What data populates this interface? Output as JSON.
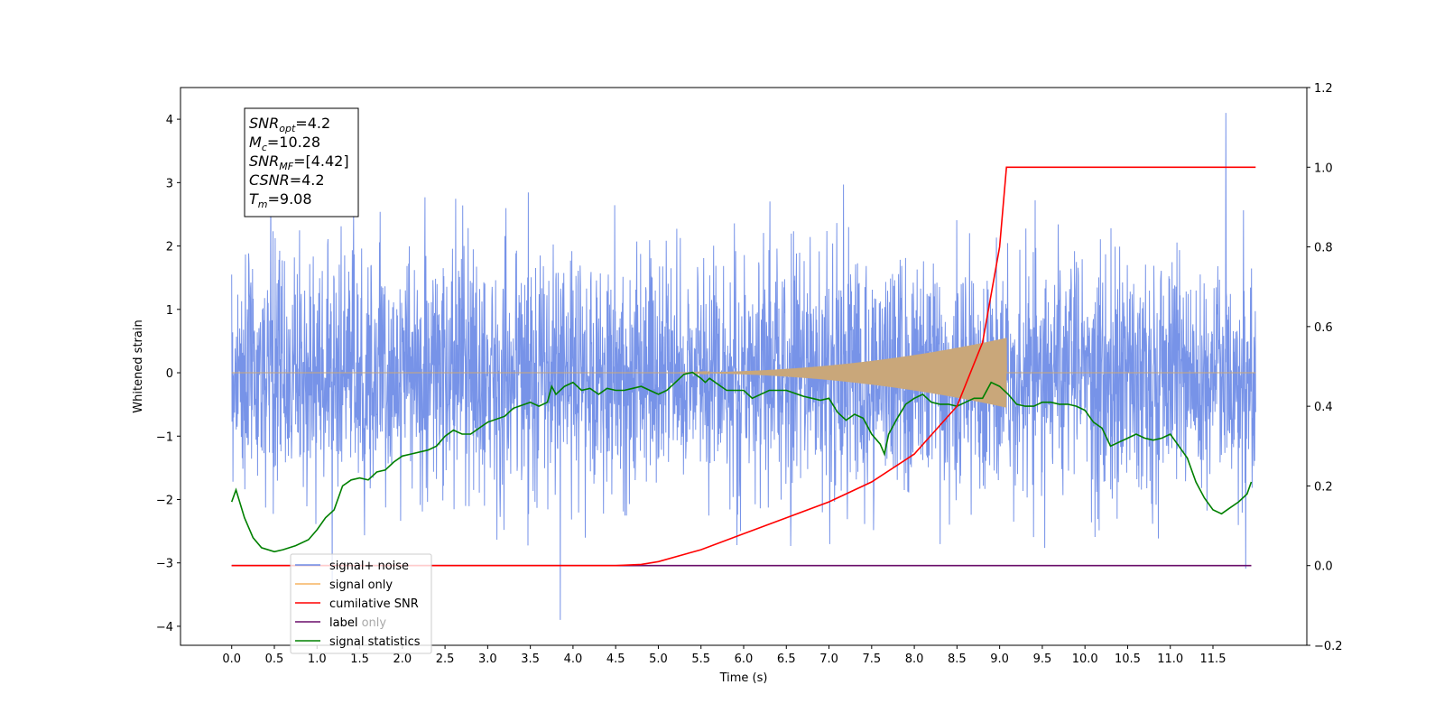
{
  "chart_data": {
    "type": "line",
    "xlabel": "Time (s)",
    "ylabel": "Whitened strain",
    "xlim": [
      -0.6,
      12.6
    ],
    "ylim": [
      -4.3,
      4.5
    ],
    "y2lim": [
      -0.2,
      1.2
    ],
    "x_ticks": [
      0.0,
      0.5,
      1.0,
      1.5,
      2.0,
      2.5,
      3.0,
      3.5,
      4.0,
      4.5,
      5.0,
      5.5,
      6.0,
      6.5,
      7.0,
      7.5,
      8.0,
      8.5,
      9.0,
      9.5,
      10.0,
      10.5,
      11.0,
      11.5
    ],
    "x_tick_labels": [
      "0.0",
      "0.5",
      "1.0",
      "1.5",
      "2.0",
      "2.5",
      "3.0",
      "3.5",
      "4.0",
      "4.5",
      "5.0",
      "5.5",
      "6.0",
      "6.5",
      "7.0",
      "7.5",
      "8.0",
      "8.5",
      "9.0",
      "9.5",
      "10.0",
      "10.5",
      "11.0",
      "11.5"
    ],
    "y_ticks": [
      -4,
      -3,
      -2,
      -1,
      0,
      1,
      2,
      3,
      4
    ],
    "y_tick_labels": [
      "−4",
      "−3",
      "−2",
      "−1",
      "0",
      "1",
      "2",
      "3",
      "4"
    ],
    "y2_ticks": [
      -0.2,
      0.0,
      0.2,
      0.4,
      0.6,
      0.8,
      1.0,
      1.2
    ],
    "y2_tick_labels": [
      "−0.2",
      "0.0",
      "0.2",
      "0.4",
      "0.6",
      "0.8",
      "1.0",
      "1.2"
    ],
    "grid": false,
    "legend_placement": "lower-left",
    "series": [
      {
        "name": "signal+ noise",
        "color": "#6b8ae6",
        "axis": "left",
        "description_values": {
          "x_range": [
            0.0,
            12.0
          ],
          "typical_amplitude": 2.3,
          "max": 4.1,
          "max_at": 11.65,
          "min": -3.9,
          "min_at": 3.85
        }
      },
      {
        "name": "signal only",
        "color": "#f5b461",
        "axis": "left",
        "chirp": {
          "start": 5.0,
          "merger": 9.08,
          "peak_amplitude": 0.55,
          "end": 12.0
        }
      },
      {
        "name": "cumilative SNR",
        "color": "#ff0000",
        "axis": "right",
        "x": [
          0.0,
          4.5,
          4.8,
          5.0,
          5.5,
          6.0,
          6.5,
          7.0,
          7.5,
          8.0,
          8.5,
          8.8,
          9.0,
          9.08,
          9.1,
          12.0
        ],
        "values": [
          0.0,
          0.0,
          0.003,
          0.01,
          0.04,
          0.08,
          0.12,
          0.16,
          0.21,
          0.28,
          0.4,
          0.56,
          0.8,
          1.0,
          1.0,
          1.0
        ]
      },
      {
        "name": "label",
        "color": "#6a0d6a",
        "axis": "right",
        "x": [
          0.0,
          11.95
        ],
        "values": [
          0.0,
          0.0
        ]
      },
      {
        "name": "label only",
        "color": "#6a0d6a",
        "axis": "right",
        "hidden_in_plot": true
      },
      {
        "name": "signal statistics",
        "color": "#008000",
        "axis": "right",
        "x": [
          0.0,
          0.05,
          0.15,
          0.25,
          0.35,
          0.5,
          0.6,
          0.75,
          0.9,
          1.0,
          1.1,
          1.2,
          1.3,
          1.4,
          1.5,
          1.6,
          1.7,
          1.8,
          1.9,
          2.0,
          2.1,
          2.3,
          2.4,
          2.5,
          2.6,
          2.7,
          2.8,
          2.9,
          3.0,
          3.2,
          3.3,
          3.5,
          3.6,
          3.7,
          3.75,
          3.8,
          3.9,
          4.0,
          4.1,
          4.2,
          4.3,
          4.4,
          4.5,
          4.6,
          4.7,
          4.8,
          4.9,
          5.0,
          5.1,
          5.2,
          5.3,
          5.4,
          5.5,
          5.55,
          5.6,
          5.7,
          5.8,
          6.0,
          6.1,
          6.3,
          6.5,
          6.7,
          6.8,
          6.9,
          7.0,
          7.1,
          7.2,
          7.3,
          7.4,
          7.5,
          7.6,
          7.65,
          7.7,
          7.8,
          7.9,
          8.0,
          8.1,
          8.2,
          8.3,
          8.4,
          8.5,
          8.6,
          8.7,
          8.8,
          8.9,
          9.0,
          9.1,
          9.2,
          9.3,
          9.4,
          9.5,
          9.6,
          9.7,
          9.8,
          9.9,
          10.0,
          10.1,
          10.2,
          10.3,
          10.4,
          10.5,
          10.6,
          10.7,
          10.8,
          10.9,
          11.0,
          11.1,
          11.2,
          11.3,
          11.4,
          11.5,
          11.6,
          11.7,
          11.8,
          11.9,
          11.95
        ],
        "values": [
          0.16,
          0.19,
          0.12,
          0.07,
          0.045,
          0.035,
          0.04,
          0.05,
          0.065,
          0.09,
          0.12,
          0.14,
          0.2,
          0.215,
          0.22,
          0.215,
          0.235,
          0.24,
          0.26,
          0.275,
          0.28,
          0.29,
          0.3,
          0.325,
          0.34,
          0.33,
          0.33,
          0.345,
          0.36,
          0.375,
          0.395,
          0.41,
          0.4,
          0.41,
          0.45,
          0.43,
          0.45,
          0.46,
          0.44,
          0.445,
          0.43,
          0.445,
          0.44,
          0.44,
          0.445,
          0.45,
          0.44,
          0.43,
          0.44,
          0.46,
          0.48,
          0.485,
          0.47,
          0.46,
          0.47,
          0.455,
          0.44,
          0.44,
          0.42,
          0.44,
          0.44,
          0.425,
          0.42,
          0.415,
          0.42,
          0.385,
          0.365,
          0.38,
          0.37,
          0.33,
          0.305,
          0.28,
          0.33,
          0.37,
          0.405,
          0.42,
          0.43,
          0.41,
          0.405,
          0.405,
          0.4,
          0.41,
          0.42,
          0.42,
          0.46,
          0.45,
          0.43,
          0.405,
          0.4,
          0.4,
          0.41,
          0.41,
          0.405,
          0.405,
          0.4,
          0.39,
          0.36,
          0.345,
          0.3,
          0.31,
          0.32,
          0.33,
          0.32,
          0.315,
          0.32,
          0.33,
          0.3,
          0.27,
          0.21,
          0.17,
          0.14,
          0.13,
          0.145,
          0.16,
          0.18,
          0.21
        ]
      }
    ],
    "annotation_box": {
      "lines": [
        {
          "main": "SNR",
          "sub": "opt",
          "rest": "=4.2"
        },
        {
          "main": "M",
          "sub": "c",
          "rest": "=10.28"
        },
        {
          "main": "SNR",
          "sub": "MF",
          "rest": "=[4.42]"
        },
        {
          "main": "CSNR",
          "sub": "",
          "rest": "=4.2"
        },
        {
          "main": "T",
          "sub": "m",
          "rest": "=9.08"
        }
      ]
    }
  }
}
